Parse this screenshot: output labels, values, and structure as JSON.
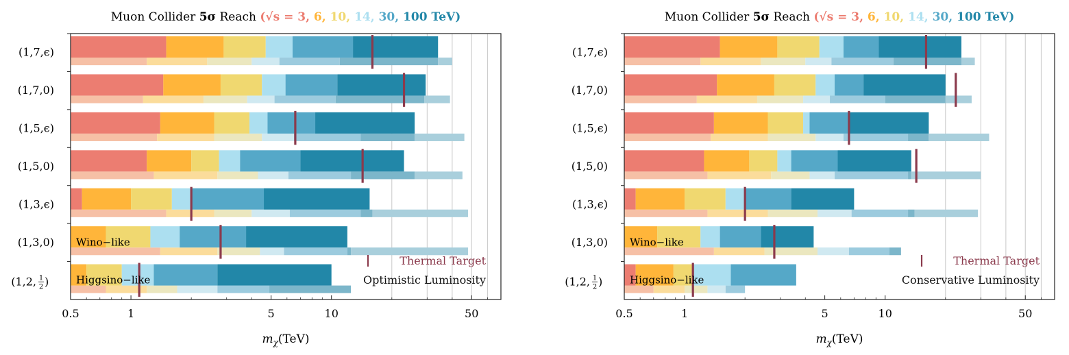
{
  "figure": {
    "width": 1560,
    "height": 518
  },
  "colors": {
    "energy": [
      "#ec7d71",
      "#ffb53a",
      "#f0d870",
      "#acdff0",
      "#55a8c8",
      "#2287a8"
    ],
    "energy_light": [
      "#f6c0a6",
      "#fbdc9b",
      "#ebe7bf",
      "#d0e9f1",
      "#9ccbde",
      "#7cb6ca"
    ],
    "far": "#a9cfdc",
    "thermal": "#8b3a4c",
    "grid": "#c8c8c8",
    "axis": "#222222"
  },
  "chart_data": [
    {
      "type": "bar",
      "orientation": "horizontal-range",
      "title": {
        "prefix": "Muon Collider ",
        "bold": "5σ",
        "middle": " Reach ",
        "sqrt_s": "(√s = ",
        "energies": [
          "3,",
          "6,",
          "10,",
          "14,",
          "30,",
          "100 TeV)"
        ]
      },
      "xlabel": "mχ(TeV)",
      "xscale": "log",
      "xlim": [
        0.5,
        70
      ],
      "xticks": [
        0.5,
        1,
        5,
        10,
        50
      ],
      "xtick_labels": [
        "0.5",
        "1",
        "5",
        "10",
        "50"
      ],
      "grid_x": [
        20,
        30,
        40,
        50,
        60
      ],
      "categories": [
        "(1,7,ϵ)",
        "(1,7,0)",
        "(1,5,ϵ)",
        "(1,5,0)",
        "(1,3,ϵ)",
        "(1,3,0)",
        "(1,2,½)"
      ],
      "series_labels": [
        "3 TeV",
        "6 TeV",
        "10 TeV",
        "14 TeV",
        "30 TeV",
        "100 TeV"
      ],
      "main_bars": [
        [
          1.5,
          2.9,
          4.7,
          6.4,
          12.8,
          34.0
        ],
        [
          1.45,
          2.8,
          4.5,
          5.9,
          10.7,
          29.5
        ],
        [
          1.4,
          2.6,
          3.9,
          4.8,
          8.3,
          26.0
        ],
        [
          1.2,
          2.0,
          2.75,
          3.5,
          7.0,
          23.0
        ],
        [
          0.57,
          1.0,
          1.6,
          2.0,
          4.6,
          15.5
        ],
        [
          0.5,
          0.75,
          1.25,
          1.75,
          3.75,
          12.0
        ],
        [
          0.5,
          0.6,
          0.9,
          1.3,
          2.7,
          10.0
        ]
      ],
      "light_bars": [
        [
          1.2,
          2.4,
          4.0,
          5.5,
          11.0,
          34.0
        ],
        [
          1.15,
          2.3,
          3.8,
          5.2,
          10.5,
          29.0
        ],
        [
          1.35,
          2.6,
          4.5,
          6.5,
          14.0,
          26.0
        ],
        [
          1.3,
          2.7,
          4.3,
          6.1,
          12.5,
          26.0
        ],
        [
          1.5,
          2.6,
          4.0,
          6.2,
          14.0,
          16.0
        ],
        [
          1.4,
          2.7,
          4.4,
          5.8,
          12.0,
          12.5
        ],
        [
          0.75,
          1.2,
          1.7,
          2.7,
          4.9,
          12.5
        ]
      ],
      "far_bars": [
        40.0,
        39.0,
        46.0,
        45.0,
        48.0,
        48.0,
        null
      ],
      "thermal_targets": [
        16.0,
        23.0,
        6.6,
        14.3,
        2.0,
        2.8,
        1.1
      ],
      "annotations": [
        {
          "text": "Wino−like",
          "row": 5
        },
        {
          "text": "Higgsino−like",
          "row": 6
        }
      ],
      "legend": {
        "thermal_label": "Thermal Target",
        "luminosity_label": "Optimistic Luminosity",
        "placement": "bottom-right"
      }
    },
    {
      "type": "bar",
      "orientation": "horizontal-range",
      "title": {
        "prefix": "Muon Collider ",
        "bold": "5σ",
        "middle": " Reach ",
        "sqrt_s": "(√s = ",
        "energies": [
          "3,",
          "6,",
          "10,",
          "14,",
          "30,",
          "100 TeV)"
        ]
      },
      "xlabel": "mχ(TeV)",
      "xscale": "log",
      "xlim": [
        0.5,
        70
      ],
      "xticks": [
        0.5,
        1,
        5,
        10,
        50
      ],
      "xtick_labels": [
        "0.5",
        "1",
        "5",
        "10",
        "50"
      ],
      "grid_x": [
        20,
        30,
        40,
        50,
        60
      ],
      "categories": [
        "(1,7,ϵ)",
        "(1,7,0)",
        "(1,5,ϵ)",
        "(1,5,0)",
        "(1,3,ϵ)",
        "(1,3,0)",
        "(1,2,½)"
      ],
      "series_labels": [
        "3 TeV",
        "6 TeV",
        "10 TeV",
        "14 TeV",
        "30 TeV",
        "100 TeV"
      ],
      "main_bars": [
        [
          1.5,
          2.9,
          4.7,
          6.2,
          9.3,
          24.0
        ],
        [
          1.45,
          2.8,
          4.5,
          5.6,
          7.8,
          20.0
        ],
        [
          1.4,
          2.6,
          3.9,
          4.2,
          6.6,
          16.5
        ],
        [
          1.25,
          2.1,
          2.9,
          3.4,
          5.8,
          13.5
        ],
        [
          0.57,
          1.0,
          1.6,
          2.0,
          3.4,
          7.0
        ],
        [
          0.5,
          0.73,
          1.2,
          1.5,
          2.4,
          4.4
        ],
        [
          0.57,
          0.88,
          1.1,
          1.7,
          3.6,
          null
        ]
      ],
      "light_bars": [
        [
          1.2,
          2.4,
          4.0,
          5.4,
          11.0,
          24.0
        ],
        [
          1.15,
          2.3,
          3.9,
          5.3,
          10.0,
          20.0
        ],
        [
          1.35,
          2.6,
          4.5,
          6.2,
          13.0,
          16.5
        ],
        [
          1.3,
          2.7,
          4.2,
          5.6,
          13.0,
          13.5
        ],
        [
          1.3,
          2.6,
          4.6,
          6.8,
          13.0,
          14.0
        ],
        [
          1.4,
          2.5,
          4.6,
          6.6,
          10.5,
          12.0
        ],
        [
          0.7,
          1.0,
          1.3,
          1.6,
          2.0,
          null
        ]
      ],
      "far_bars": [
        28.0,
        27.0,
        33.0,
        30.0,
        29.0,
        null,
        null
      ],
      "thermal_targets": [
        16.0,
        22.5,
        6.6,
        14.3,
        2.0,
        2.8,
        1.1
      ],
      "annotations": [
        {
          "text": "Wino−like",
          "row": 5
        },
        {
          "text": "Higgsino−like",
          "row": 6
        }
      ],
      "legend": {
        "thermal_label": "Thermal Target",
        "luminosity_label": "Conservative Luminosity",
        "placement": "bottom-right"
      }
    }
  ]
}
